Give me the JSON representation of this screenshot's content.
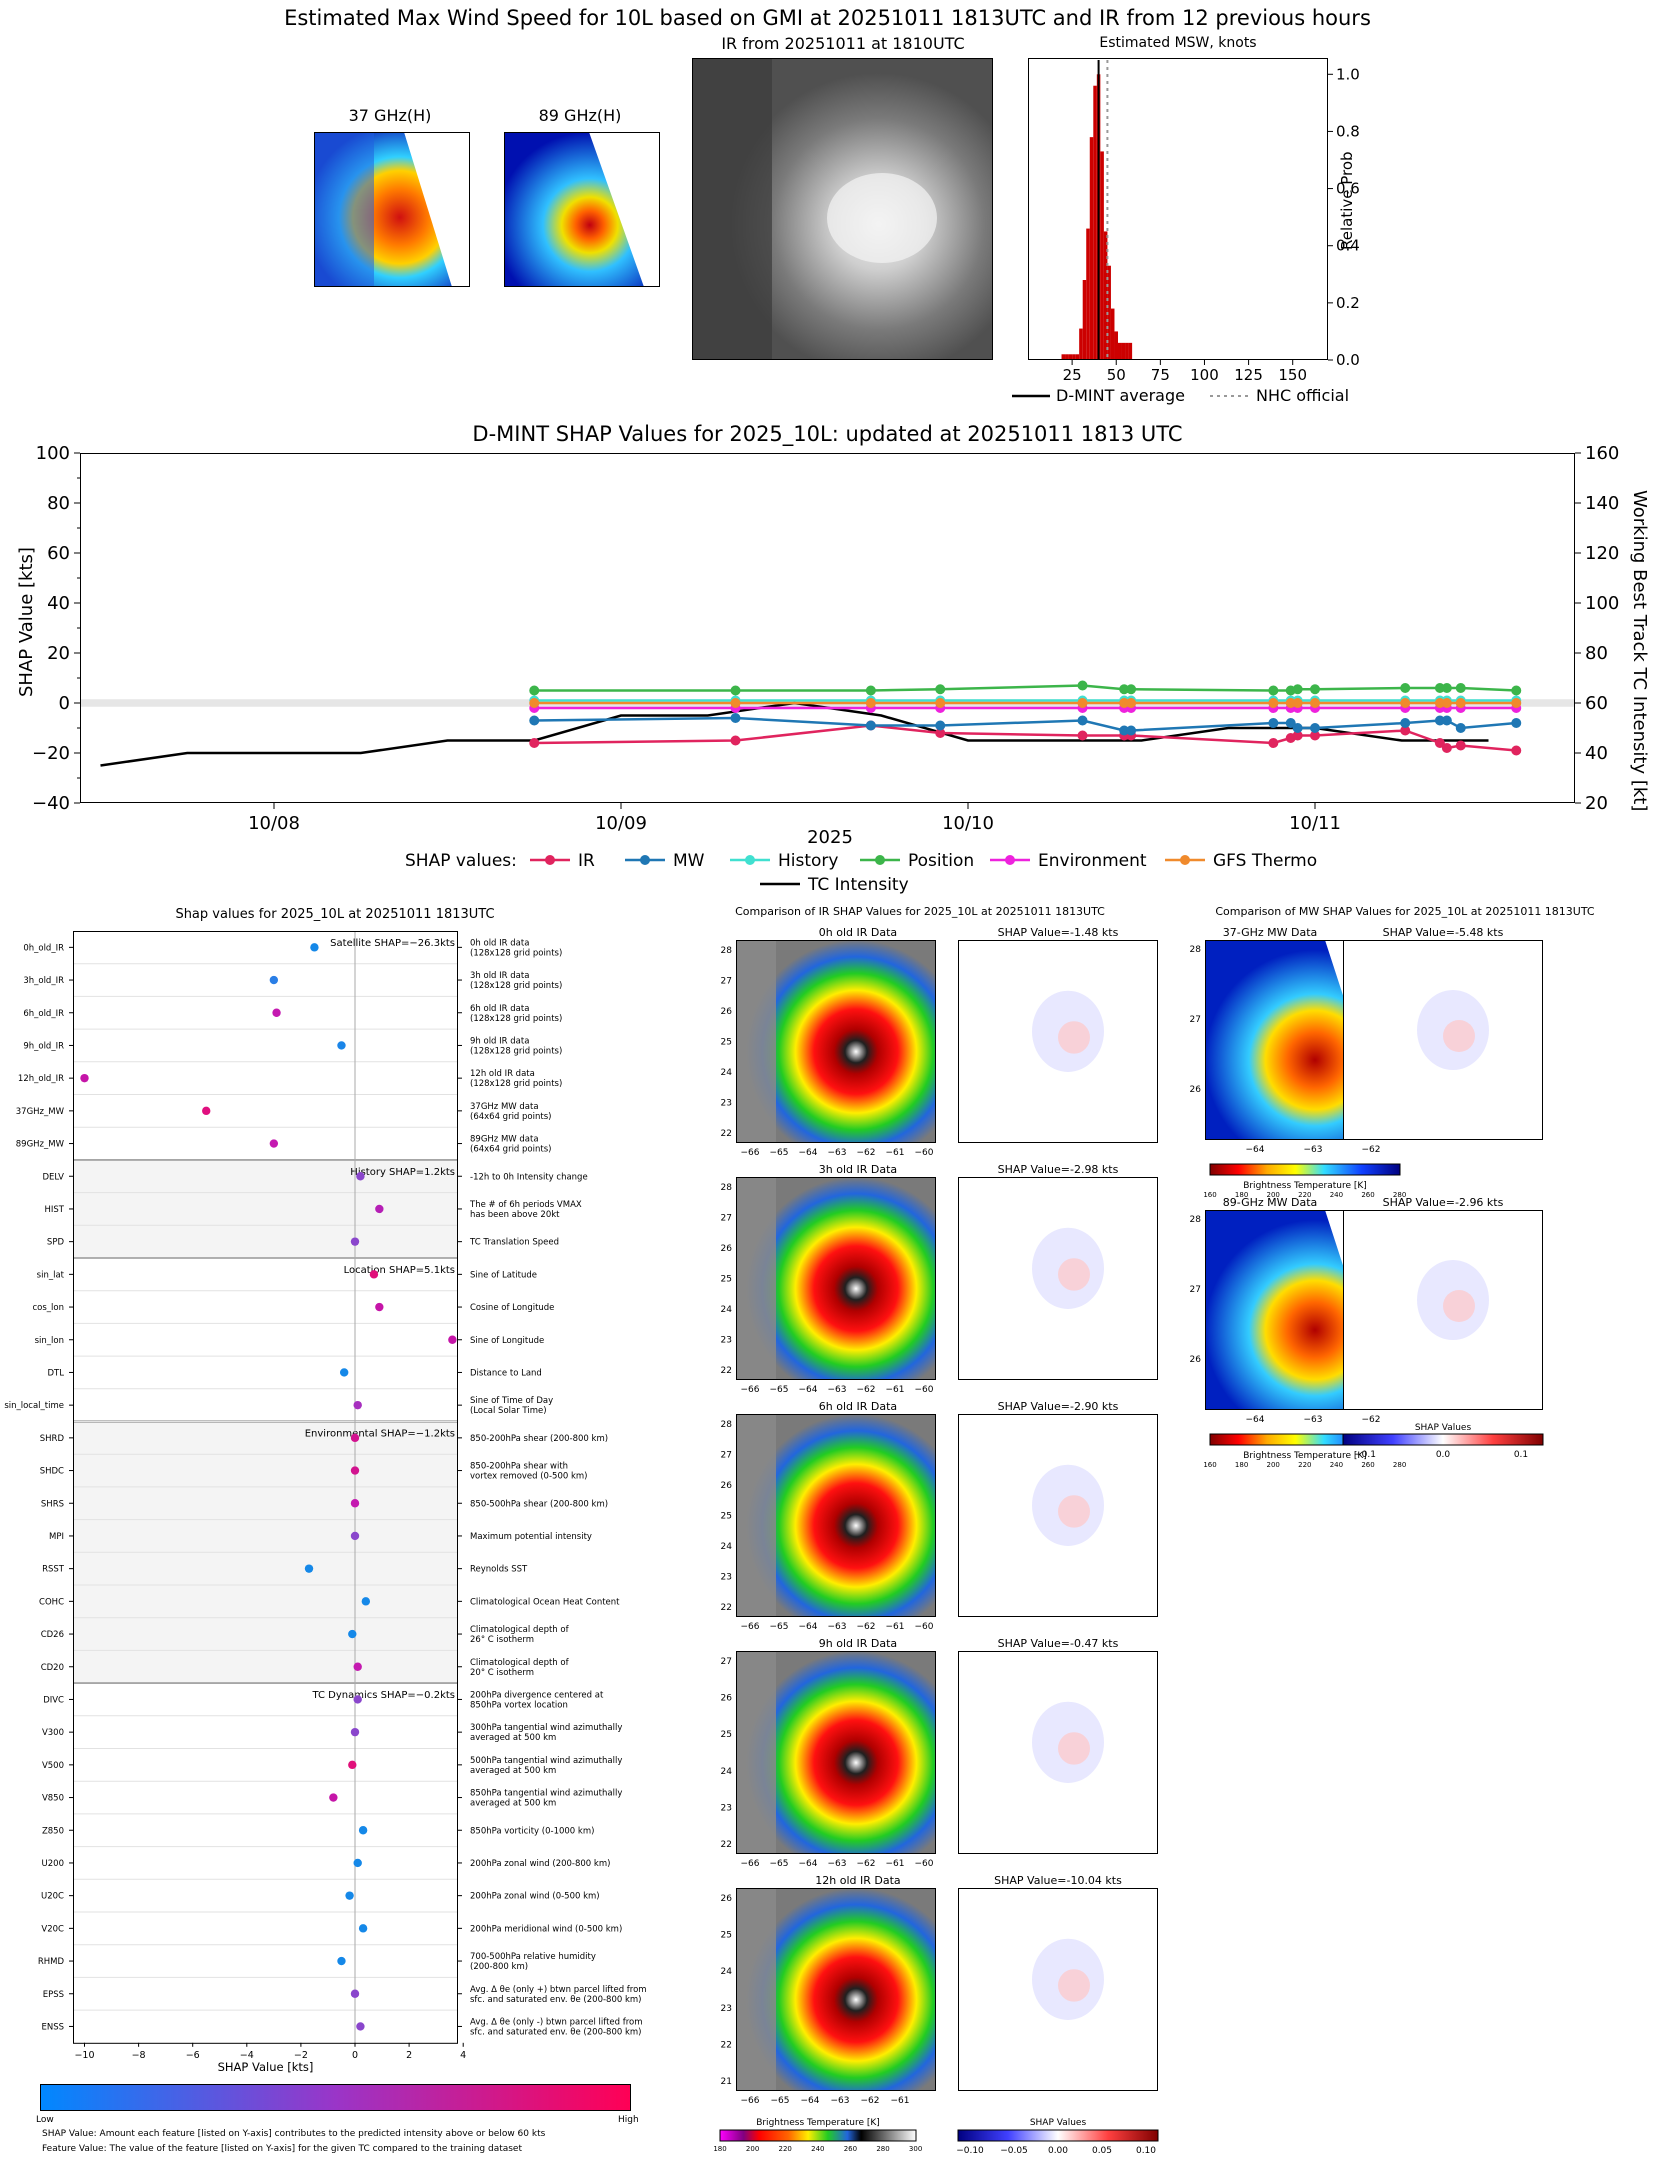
{
  "main_title": "Estimated Max Wind Speed for 10L based on GMI at 20251011 1813UTC and IR from 12 previous hours",
  "panels": {
    "mw37_title": "37 GHz(H)",
    "mw89_title": "89 GHz(H)",
    "ir_title": "IR from 20251011 at 1810UTC"
  },
  "msw_chart": {
    "type": "bar",
    "title": "Estimated MSW, knots",
    "ylabel": "Relative Prob",
    "x_ticks": [
      "25",
      "50",
      "75",
      "100",
      "125",
      "150"
    ],
    "y_ticks": [
      "0.0",
      "0.2",
      "0.4",
      "0.6",
      "0.8",
      "1.0"
    ],
    "xlim": [
      0,
      170
    ],
    "ylim": [
      0,
      1.05
    ],
    "bin_width": 2,
    "x": [
      20,
      22,
      24,
      26,
      28,
      30,
      32,
      34,
      36,
      38,
      40,
      42,
      44,
      46,
      48,
      50,
      52,
      54,
      56,
      58
    ],
    "values": [
      0.02,
      0.02,
      0.02,
      0.02,
      0.02,
      0.11,
      0.28,
      0.46,
      0.78,
      0.96,
      1.0,
      0.73,
      0.45,
      0.33,
      0.18,
      0.1,
      0.06,
      0.06,
      0.06,
      0.06
    ],
    "dmint_average": 40,
    "nhc_official": 45,
    "legend": [
      "D-MINT average",
      "NHC official"
    ]
  },
  "shap_timeseries": {
    "type": "line",
    "title": "D-MINT SHAP Values for 2025_10L: updated at 20251011 1813 UTC",
    "ylabel": "SHAP Value [kts]",
    "y2label": "Working Best Track TC Intensity [kt]",
    "xlabel": "2025",
    "y_ticks": [
      "100",
      "80",
      "60",
      "40",
      "20",
      "0",
      "−20",
      "−40"
    ],
    "y2_ticks": [
      "160",
      "140",
      "120",
      "100",
      "80",
      "60",
      "40",
      "20"
    ],
    "x_ticks": [
      "10/08",
      "10/09",
      "10/10",
      "10/11"
    ],
    "legend_title": "SHAP values:",
    "series_names": [
      "IR",
      "MW",
      "History",
      "Position",
      "Environment",
      "GFS Thermo",
      "TC Intensity"
    ],
    "colors": [
      "#e0245e",
      "#1f77b4",
      "#40e0d0",
      "#3cb54a",
      "#ee22dd",
      "#f08a2c",
      "#000000"
    ],
    "x": [
      0.75,
      1.33,
      1.72,
      1.92,
      2.33,
      2.45,
      2.47,
      2.88,
      2.93,
      2.95,
      3.0,
      3.26,
      3.36,
      3.38,
      3.42,
      3.58
    ],
    "series": [
      {
        "name": "IR",
        "values": [
          -16,
          -15,
          -9,
          -12,
          -13,
          -13,
          -13,
          -16,
          -14,
          -13,
          -13,
          -11,
          -16,
          -18,
          -17,
          -19
        ]
      },
      {
        "name": "MW",
        "values": [
          -7,
          -6,
          -9,
          -9,
          -7,
          -11,
          -11,
          -8,
          -8,
          -10,
          -10,
          -8,
          -7,
          -7,
          -10,
          -8
        ]
      },
      {
        "name": "History",
        "values": [
          1,
          1,
          1,
          1,
          1,
          1,
          1,
          1,
          1,
          1,
          1,
          1,
          1,
          1,
          1,
          1
        ]
      },
      {
        "name": "Position",
        "values": [
          5,
          5,
          5,
          5.5,
          7,
          5.5,
          5.5,
          5,
          5,
          5.5,
          5.5,
          6,
          6,
          6,
          6,
          5
        ]
      },
      {
        "name": "Environment",
        "values": [
          -2,
          -2,
          -2,
          -2,
          -2,
          -2,
          -2,
          -2,
          -2,
          -2,
          -2,
          -2,
          -2,
          -2,
          -2,
          -2
        ]
      },
      {
        "name": "GFS Thermo",
        "values": [
          0,
          0,
          0,
          0,
          0,
          0,
          0,
          0,
          0,
          0,
          0,
          0,
          0,
          0,
          0,
          0
        ]
      }
    ],
    "tc_intensity": {
      "x": [
        -0.5,
        0,
        0.5,
        1,
        1.5,
        2,
        2.5,
        3,
        3.5,
        4,
        4.5,
        5,
        5.5,
        6,
        6.5,
        7,
        7.5
      ],
      "values": [
        35,
        40,
        40,
        40,
        45,
        45,
        55,
        55,
        60,
        55,
        45,
        45,
        45,
        50,
        50,
        45,
        45
      ]
    }
  },
  "feature_shap": {
    "type": "scatter",
    "title": "Shap values for 2025_10L at 20251011 1813UTC",
    "xlabel": "SHAP Value [kts]",
    "x_ticks": [
      "−10",
      "−8",
      "−6",
      "−4",
      "−2",
      "0",
      "2",
      "4"
    ],
    "groups": [
      {
        "label": "Satellite SHAP=−26.3kts",
        "shaded": false
      },
      {
        "label": "History SHAP=1.2kts",
        "shaded": true
      },
      {
        "label": "Location SHAP=5.1kts",
        "shaded": false
      },
      {
        "label": "Environmental SHAP=−1.2kts",
        "shaded": true
      },
      {
        "label": "TC Dynamics SHAP=−0.2kts",
        "shaded": false
      }
    ],
    "features": [
      {
        "name": "0h_old_IR",
        "desc1": "0h old IR data",
        "desc2": "(128x128 grid points)",
        "value": -1.5,
        "color": "#1588e8",
        "group": 0
      },
      {
        "name": "3h_old_IR",
        "desc1": "3h old IR data",
        "desc2": "(128x128 grid points)",
        "value": -3.0,
        "color": "#2a7ee6",
        "group": 0
      },
      {
        "name": "6h_old_IR",
        "desc1": "6h old IR data",
        "desc2": "(128x128 grid points)",
        "value": -2.9,
        "color": "#c419b0",
        "group": 0
      },
      {
        "name": "9h_old_IR",
        "desc1": "9h old IR data",
        "desc2": "(128x128 grid points)",
        "value": -0.5,
        "color": "#1a85e8",
        "group": 0
      },
      {
        "name": "12h_old_IR",
        "desc1": "12h old IR data",
        "desc2": "(128x128 grid points)",
        "value": -10.0,
        "color": "#c515a8",
        "group": 0
      },
      {
        "name": "37GHz_MW",
        "desc1": "37GHz MW data",
        "desc2": "(64x64 grid points)",
        "value": -5.5,
        "color": "#e00f7f",
        "group": 0
      },
      {
        "name": "89GHz_MW",
        "desc1": "89GHz MW data",
        "desc2": "(64x64 grid points)",
        "value": -3.0,
        "color": "#c419b0",
        "group": 0
      },
      {
        "name": "DELV",
        "desc1": "-12h to 0h Intensity change",
        "desc2": "",
        "value": 0.2,
        "color": "#8a46cc",
        "group": 1
      },
      {
        "name": "HIST",
        "desc1": "The # of 6h periods VMAX",
        "desc2": "has been above 20kt",
        "value": 0.9,
        "color": "#b51fb5",
        "group": 1
      },
      {
        "name": "SPD",
        "desc1": "TC Translation Speed",
        "desc2": "",
        "value": 0.0,
        "color": "#8a46cc",
        "group": 1
      },
      {
        "name": "sin_lat",
        "desc1": "Sine of Latitude",
        "desc2": "",
        "value": 0.7,
        "color": "#e0107a",
        "group": 2
      },
      {
        "name": "cos_lon",
        "desc1": "Cosine of Longitude",
        "desc2": "",
        "value": 0.9,
        "color": "#c515a8",
        "group": 2
      },
      {
        "name": "sin_lon",
        "desc1": "Sine of Longitude",
        "desc2": "",
        "value": 3.6,
        "color": "#c515a8",
        "group": 2
      },
      {
        "name": "DTL",
        "desc1": "Distance to Land",
        "desc2": "",
        "value": -0.4,
        "color": "#1588e8",
        "group": 2
      },
      {
        "name": "sin_local_time",
        "desc1": "Sine of Time of Day",
        "desc2": "(Local Solar Time)",
        "value": 0.1,
        "color": "#a72fbf",
        "group": 2
      },
      {
        "name": "SHRD",
        "desc1": "850-200hPa shear (200-800 km)",
        "desc2": "",
        "value": 0.0,
        "color": "#d2138f",
        "group": 3
      },
      {
        "name": "SHDC",
        "desc1": "850-200hPa shear with",
        "desc2": "vortex removed (0-500 km)",
        "value": 0.0,
        "color": "#d2138f",
        "group": 3
      },
      {
        "name": "SHRS",
        "desc1": "850-500hPa shear (200-800 km)",
        "desc2": "",
        "value": 0.0,
        "color": "#c419b0",
        "group": 3
      },
      {
        "name": "MPI",
        "desc1": "Maximum potential intensity",
        "desc2": "",
        "value": 0.0,
        "color": "#8a46cc",
        "group": 3
      },
      {
        "name": "RSST",
        "desc1": "Reynolds SST",
        "desc2": "",
        "value": -1.7,
        "color": "#1588e8",
        "group": 3
      },
      {
        "name": "COHC",
        "desc1": "Climatological Ocean Heat Content",
        "desc2": "",
        "value": 0.4,
        "color": "#1588e8",
        "group": 3
      },
      {
        "name": "CD26",
        "desc1": "Climatological depth of",
        "desc2": "26° C isotherm",
        "value": -0.1,
        "color": "#1588e8",
        "group": 3
      },
      {
        "name": "CD20",
        "desc1": "Climatological depth of",
        "desc2": "20° C isotherm",
        "value": 0.1,
        "color": "#c419b0",
        "group": 3
      },
      {
        "name": "DIVC",
        "desc1": "200hPa divergence centered at",
        "desc2": "850hPa vortex location",
        "value": 0.1,
        "color": "#8a46cc",
        "group": 4
      },
      {
        "name": "V300",
        "desc1": "300hPa tangential wind azimuthally",
        "desc2": "averaged at 500 km",
        "value": 0.0,
        "color": "#8a46cc",
        "group": 4
      },
      {
        "name": "V500",
        "desc1": "500hPa tangential wind azimuthally",
        "desc2": "averaged at 500 km",
        "value": -0.1,
        "color": "#e0107a",
        "group": 4
      },
      {
        "name": "V850",
        "desc1": "850hPa tangential wind azimuthally",
        "desc2": "averaged at 500 km",
        "value": -0.8,
        "color": "#c515a8",
        "group": 4
      },
      {
        "name": "Z850",
        "desc1": "850hPa vorticity (0-1000 km)",
        "desc2": "",
        "value": 0.3,
        "color": "#1588e8",
        "group": 4
      },
      {
        "name": "U200",
        "desc1": "200hPa zonal wind (200-800 km)",
        "desc2": "",
        "value": 0.1,
        "color": "#1588e8",
        "group": 4
      },
      {
        "name": "U20C",
        "desc1": "200hPa zonal wind (0-500 km)",
        "desc2": "",
        "value": -0.2,
        "color": "#1588e8",
        "group": 4
      },
      {
        "name": "V20C",
        "desc1": "200hPa meridional wind (0-500 km)",
        "desc2": "",
        "value": 0.3,
        "color": "#1588e8",
        "group": 4
      },
      {
        "name": "RHMD",
        "desc1": "700-500hPa relative humidity",
        "desc2": "(200-800 km)",
        "value": -0.5,
        "color": "#1588e8",
        "group": 4
      },
      {
        "name": "EPSS",
        "desc1": "Avg. Δ θe (only +) btwn parcel lifted from",
        "desc2": "sfc. and saturated env. θe (200-800 km)",
        "value": 0.0,
        "color": "#8a46cc",
        "group": 4
      },
      {
        "name": "ENSS",
        "desc1": "Avg. Δ θe (only -) btwn parcel lifted from",
        "desc2": "sfc. and saturated env. θe (200-800 km)",
        "value": 0.2,
        "color": "#8a46cc",
        "group": 4
      }
    ],
    "colorbar_low": "Low",
    "colorbar_high": "High",
    "note1": "SHAP Value: Amount each feature [listed on Y-axis] contributes to the predicted intensity above or below 60 kts",
    "note2": "Feature Value: The value of the feature [listed on Y-axis] for the given TC compared to the training dataset"
  },
  "ir_comparison": {
    "title": "Comparison of IR SHAP Values for 2025_10L at 20251011 1813UTC",
    "rows": [
      {
        "label": "0h old IR Data",
        "shap": "SHAP Value=-1.48 kts",
        "y_ticks": [
          "28",
          "27",
          "26",
          "25",
          "24",
          "23",
          "22"
        ]
      },
      {
        "label": "3h old IR Data",
        "shap": "SHAP Value=-2.98 kts",
        "y_ticks": [
          "28",
          "27",
          "26",
          "25",
          "24",
          "23",
          "22"
        ]
      },
      {
        "label": "6h old IR Data",
        "shap": "SHAP Value=-2.90 kts",
        "y_ticks": [
          "28",
          "27",
          "26",
          "25",
          "24",
          "23",
          "22"
        ]
      },
      {
        "label": "9h old IR Data",
        "shap": "SHAP Value=-0.47 kts",
        "y_ticks": [
          "27",
          "26",
          "25",
          "24",
          "23",
          "22"
        ]
      },
      {
        "label": "12h old IR Data",
        "shap": "SHAP Value=-10.04 kts",
        "y_ticks": [
          "26",
          "25",
          "24",
          "23",
          "22",
          "21"
        ]
      }
    ],
    "x_ticks": [
      "−66",
      "−65",
      "−64",
      "−63",
      "−62",
      "−61",
      "−60"
    ],
    "x_ticks_last": [
      "−66",
      "−65",
      "−64",
      "−63",
      "−62",
      "−61"
    ],
    "bt_label": "Brightness Temperature [K]",
    "bt_ticks": [
      "180",
      "200",
      "220",
      "240",
      "260",
      "280",
      "300"
    ],
    "shap_label": "SHAP Values",
    "shap_ticks": [
      "−0.10",
      "−0.05",
      "0.00",
      "0.05",
      "0.10"
    ]
  },
  "mw_comparison": {
    "title": "Comparison of MW SHAP Values for 2025_10L at 20251011 1813UTC",
    "rows": [
      {
        "label": "37-GHz MW Data",
        "shap": "SHAP Value=-5.48 kts",
        "y_ticks": [
          "28",
          "27",
          "26"
        ]
      },
      {
        "label": "89-GHz MW Data",
        "shap": "SHAP Value=-2.96 kts",
        "y_ticks": [
          "28",
          "27",
          "26"
        ]
      }
    ],
    "x_ticks": [
      "−64",
      "−63",
      "−62"
    ],
    "bt_label": "Brightness Temperature [K]",
    "bt_ticks": [
      "160",
      "180",
      "200",
      "220",
      "240",
      "260",
      "280"
    ],
    "shap_label": "SHAP Values",
    "shap_ticks": [
      "−0.1",
      "0.0",
      "0.1"
    ]
  }
}
